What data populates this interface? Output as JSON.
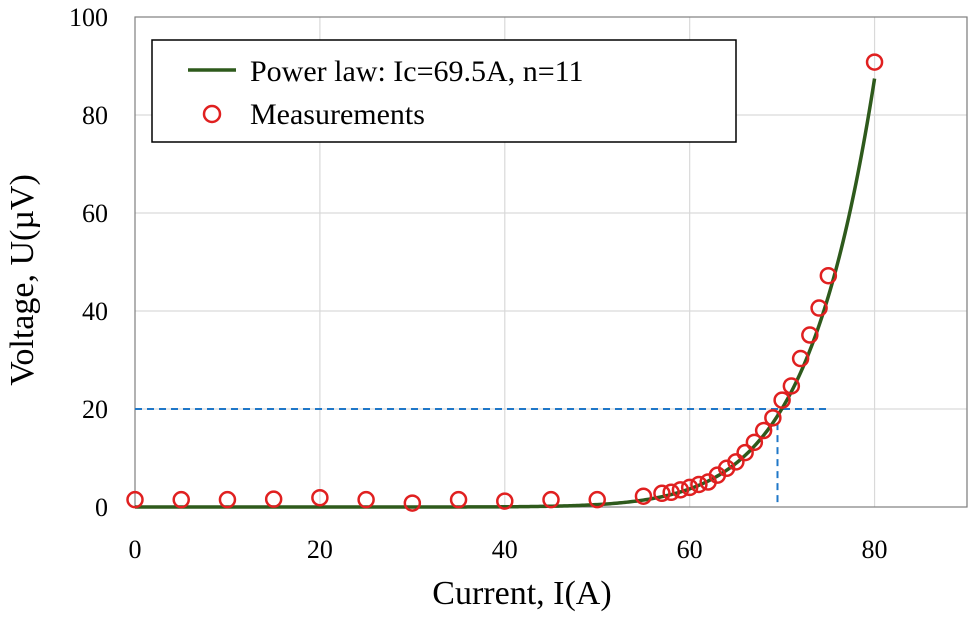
{
  "chart_data": {
    "type": "scatter",
    "title": "",
    "xlabel": "Current, I(A)",
    "ylabel": "Voltage, U(µV)",
    "xlim": [
      0,
      90
    ],
    "ylim": [
      0,
      100
    ],
    "xticks": [
      0,
      20,
      40,
      60,
      80
    ],
    "yticks": [
      0,
      20,
      40,
      60,
      80,
      100
    ],
    "xtick_labels": [
      "0",
      "20",
      "40",
      "60",
      "80"
    ],
    "ytick_labels": [
      "0",
      "20",
      "40",
      "60",
      "80",
      "100"
    ],
    "grid": true,
    "legend_position": "top-left",
    "series": [
      {
        "name": "Power law: Ic=69.5A, n=11",
        "kind": "line",
        "color": "#2e5a1c",
        "model": {
          "Ic": 69.5,
          "n": 11,
          "Uc": 18.6
        },
        "x_range": [
          0,
          80
        ]
      },
      {
        "name": "Measurements",
        "kind": "scatter",
        "color": "#e02020",
        "x": [
          0,
          5,
          10,
          15,
          20,
          25,
          30,
          35,
          40,
          45,
          50,
          55,
          57,
          58,
          59,
          60,
          61,
          62,
          63,
          64,
          65,
          66,
          67,
          68,
          69,
          70,
          71,
          72,
          73,
          74,
          75,
          80
        ],
        "y": [
          1.5,
          1.5,
          1.5,
          1.6,
          1.9,
          1.5,
          0.8,
          1.5,
          1.2,
          1.5,
          1.5,
          2.2,
          2.8,
          3.0,
          3.5,
          4.0,
          4.6,
          5.1,
          6.5,
          7.9,
          9.2,
          11.1,
          13.2,
          15.6,
          18.2,
          21.8,
          24.7,
          30.3,
          35.1,
          40.6,
          47.2,
          90.8
        ]
      }
    ],
    "annotations": [
      {
        "type": "hline-dashed",
        "y": 20,
        "x_range": [
          0,
          75
        ],
        "color": "#1f77c8"
      },
      {
        "type": "vline-dashed",
        "x": 69.5,
        "y_range": [
          1,
          20
        ],
        "color": "#1f77c8"
      }
    ]
  }
}
